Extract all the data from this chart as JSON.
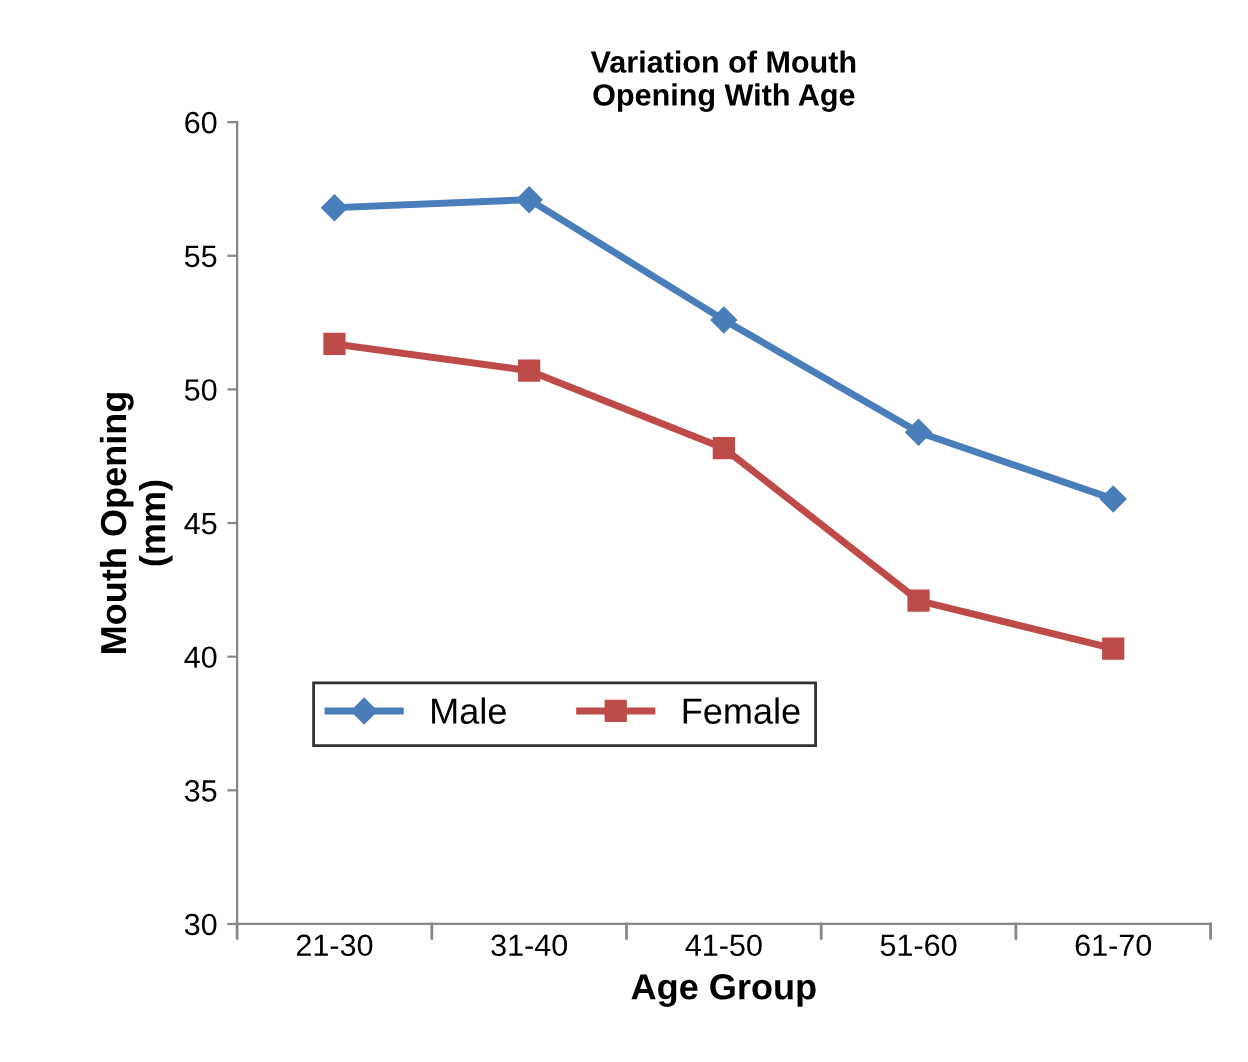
{
  "chart_data": {
    "type": "line",
    "title": "Variation of Mouth\nOpening With Age",
    "xlabel": "Age Group",
    "ylabel": "Mouth Opening\n(mm)",
    "categories": [
      "21-30",
      "31-40",
      "41-50",
      "51-60",
      "61-70"
    ],
    "series": [
      {
        "name": "Male",
        "color": "#4a7ebb",
        "marker": "diamond",
        "values": [
          56.8,
          57.1,
          52.6,
          48.4,
          45.9
        ]
      },
      {
        "name": "Female",
        "color": "#be4b48",
        "marker": "square",
        "values": [
          51.7,
          50.7,
          47.8,
          42.1,
          40.3
        ]
      }
    ],
    "ylim": [
      30,
      60
    ],
    "yticks": [
      30,
      35,
      40,
      45,
      50,
      55,
      60
    ],
    "legend": "bottom left",
    "line_style": "solid"
  }
}
